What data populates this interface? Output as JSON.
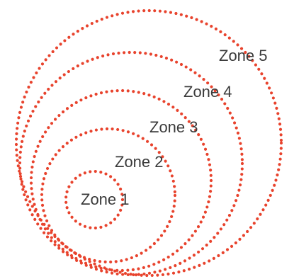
{
  "diagram": {
    "ring_color": "#e8432d",
    "label_color": "#3a3a3a",
    "zones": [
      {
        "label": "Zone 1"
      },
      {
        "label": "Zone 2"
      },
      {
        "label": "Zone 3"
      },
      {
        "label": "Zone 4"
      },
      {
        "label": "Zone 5"
      }
    ]
  }
}
